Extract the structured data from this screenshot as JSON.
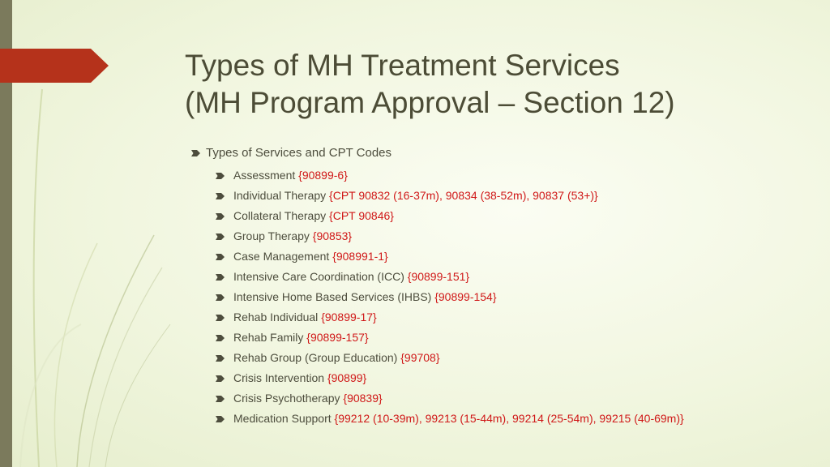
{
  "slide": {
    "title_line1": "Types of MH Treatment Services",
    "title_line2": "(MH Program Approval – Section 12)",
    "heading": "Types of Services and CPT Codes",
    "items": [
      {
        "label": "Assessment",
        "code": "{90899-6}"
      },
      {
        "label": "Individual Therapy",
        "code": "{CPT 90832 (16-37m), 90834 (38-52m), 90837 (53+)}"
      },
      {
        "label": "Collateral Therapy",
        "code": "{CPT 90846}"
      },
      {
        "label": "Group Therapy",
        "code": "{90853}"
      },
      {
        "label": "Case Management",
        "code": "{908991-1}"
      },
      {
        "label": "Intensive Care Coordination (ICC)",
        "code": "{90899-151}"
      },
      {
        "label": "Intensive Home Based Services (IHBS)",
        "code": "{90899-154}"
      },
      {
        "label": "Rehab Individual",
        "code": "{90899-17}"
      },
      {
        "label": "Rehab Family",
        "code": "{90899-157}"
      },
      {
        "label": "Rehab Group (Group Education)",
        "code": "{99708}"
      },
      {
        "label": "Crisis Intervention",
        "code": "{90899}"
      },
      {
        "label": "Crisis Psychotherapy",
        "code": "{90839}"
      },
      {
        "label": "Medication Support",
        "code": "{99212 (10-39m), 99213 (15-44m), 99214 (25-54m), 99215 (40-69m)}"
      }
    ],
    "colors": {
      "accent": "#b5321b",
      "code_text": "#d01818",
      "title_text": "#4c4c36",
      "side_bar": "#7b7a5c",
      "background": "#f1f6df"
    },
    "bullet_icon": "arrow-bullet-icon"
  }
}
